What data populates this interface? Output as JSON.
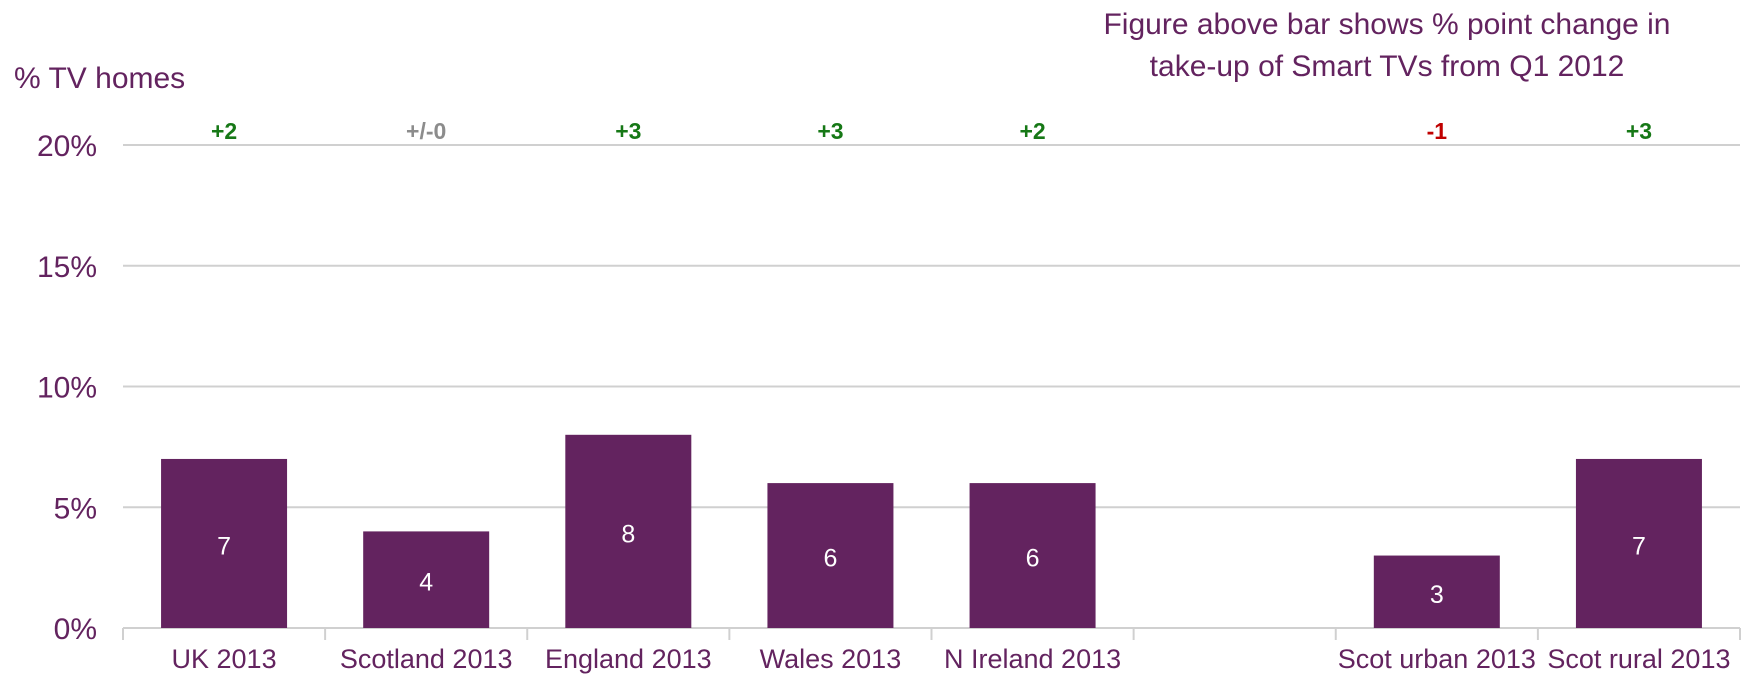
{
  "chart_data": {
    "type": "bar",
    "note_line1": "Figure above bar shows % point change in",
    "note_line2": "take-up of Smart TVs from Q1 2012",
    "ylabel": "% TV homes",
    "ylim": [
      0,
      20
    ],
    "yticks": [
      0,
      5,
      10,
      15,
      20
    ],
    "ytick_labels": [
      "0%",
      "5%",
      "10%",
      "15%",
      "20%"
    ],
    "grid": true,
    "categories": [
      "UK 2013",
      "Scotland 2013",
      "England 2013",
      "Wales 2013",
      "N Ireland 2013",
      "",
      "Scot urban 2013",
      "Scot rural 2013"
    ],
    "values": [
      7,
      4,
      8,
      6,
      6,
      null,
      3,
      7
    ],
    "data_labels": [
      "7",
      "4",
      "8",
      "6",
      "6",
      "",
      "3",
      "7"
    ],
    "changes": [
      "+2",
      "+/-0",
      "+3",
      "+3",
      "+2",
      "",
      "-1",
      "+3"
    ],
    "change_colors": [
      "#167816",
      "#8c8c8c",
      "#167816",
      "#167816",
      "#167816",
      "",
      "#c00000",
      "#167816"
    ],
    "bar_color": "#63235f",
    "text_color": "#63235f",
    "grid_color": "#d0d0d0"
  }
}
